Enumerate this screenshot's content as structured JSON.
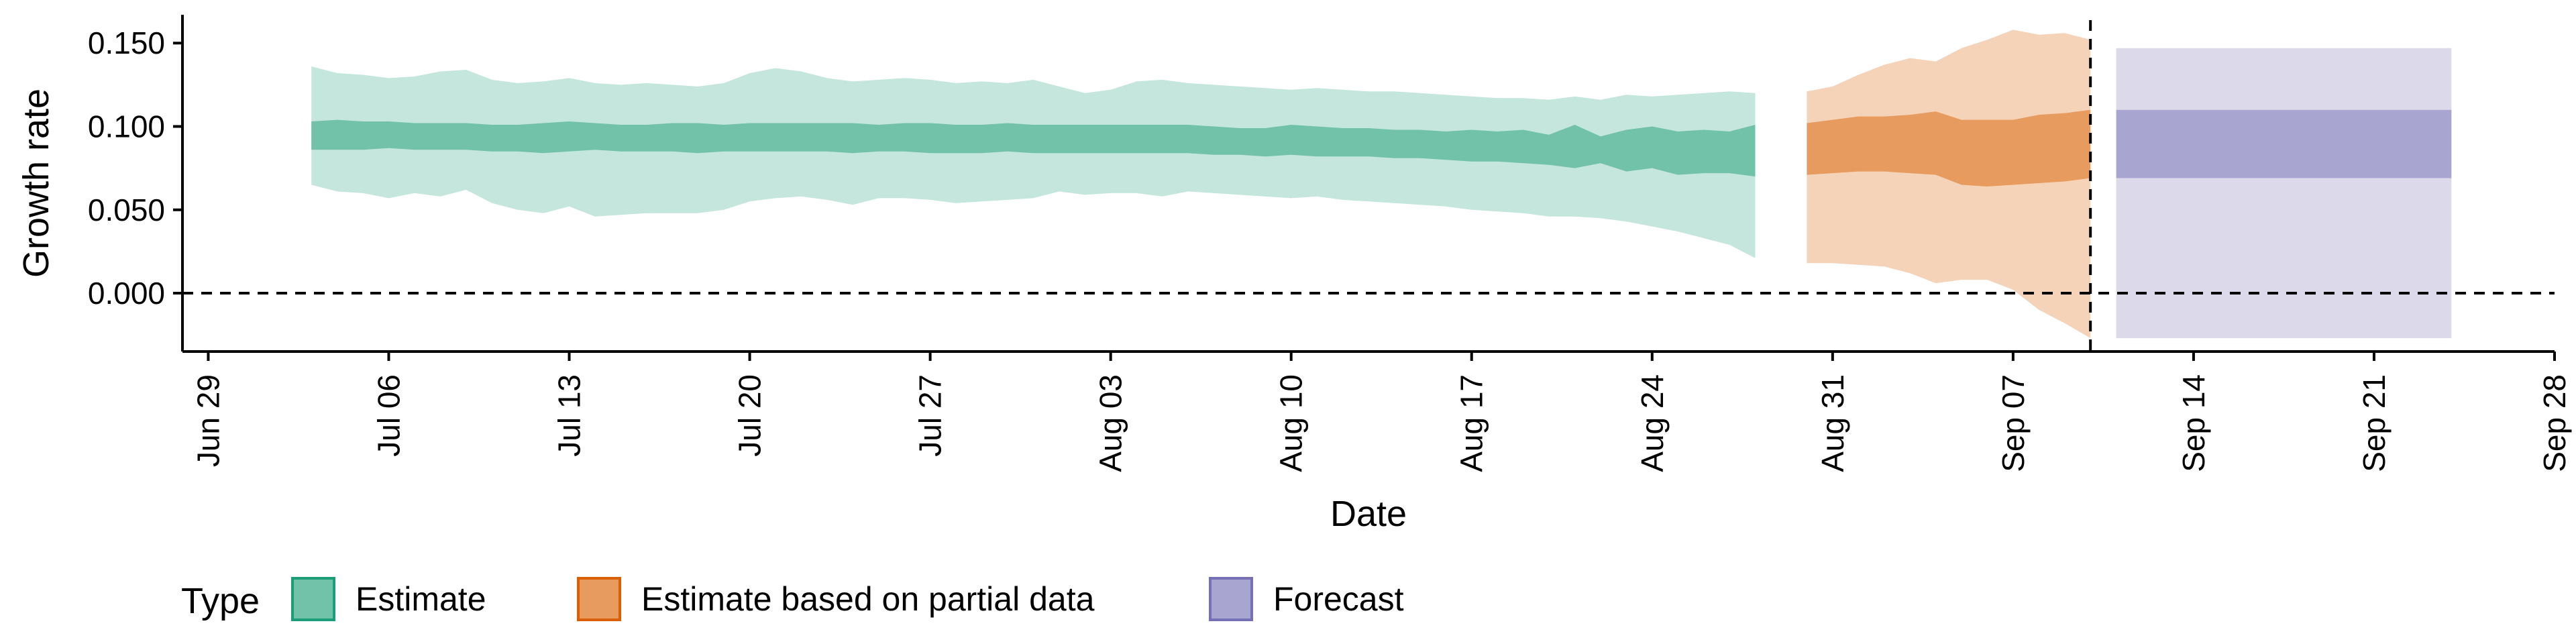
{
  "chart_data": {
    "type": "area",
    "xlabel": "Date",
    "ylabel": "Growth rate",
    "ylim": [
      -0.035,
      0.167
    ],
    "yticks": [
      0.0,
      0.05,
      0.1,
      0.15
    ],
    "ytick_labels": [
      "0.000",
      "0.050",
      "0.100",
      "0.150"
    ],
    "xlim": [
      "2020-06-28",
      "2020-09-28"
    ],
    "xtick_dates": [
      "2020-06-29",
      "2020-07-06",
      "2020-07-13",
      "2020-07-20",
      "2020-07-27",
      "2020-08-03",
      "2020-08-10",
      "2020-08-17",
      "2020-08-24",
      "2020-08-31",
      "2020-09-07",
      "2020-09-14",
      "2020-09-21",
      "2020-09-28"
    ],
    "xtick_labels": [
      "Jun 29",
      "Jul 06",
      "Jul 13",
      "Jul 20",
      "Jul 27",
      "Aug 03",
      "Aug 10",
      "Aug 17",
      "Aug 24",
      "Aug 31",
      "Sep 07",
      "Sep 14",
      "Sep 21",
      "Sep 28"
    ],
    "reference_lines": {
      "horizontal_y": 0.0,
      "vertical_date": "2020-09-10",
      "style": "dashed"
    },
    "legend": {
      "title": "Type",
      "placement": "bottom",
      "entries": [
        {
          "label": "Estimate",
          "color": "#1b9e77"
        },
        {
          "label": "Estimate based on partial data",
          "color": "#d95f02"
        },
        {
          "label": "Forecast",
          "color": "#7570b3"
        }
      ]
    },
    "series": [
      {
        "name": "Estimate",
        "fill_outer": "#c4e6dc",
        "fill_inner": "#72c2a9",
        "x": [
          "2020-07-03",
          "2020-07-04",
          "2020-07-05",
          "2020-07-06",
          "2020-07-07",
          "2020-07-08",
          "2020-07-09",
          "2020-07-10",
          "2020-07-11",
          "2020-07-12",
          "2020-07-13",
          "2020-07-14",
          "2020-07-15",
          "2020-07-16",
          "2020-07-17",
          "2020-07-18",
          "2020-07-19",
          "2020-07-20",
          "2020-07-21",
          "2020-07-22",
          "2020-07-23",
          "2020-07-24",
          "2020-07-25",
          "2020-07-26",
          "2020-07-27",
          "2020-07-28",
          "2020-07-29",
          "2020-07-30",
          "2020-07-31",
          "2020-08-01",
          "2020-08-02",
          "2020-08-03",
          "2020-08-04",
          "2020-08-05",
          "2020-08-06",
          "2020-08-07",
          "2020-08-08",
          "2020-08-09",
          "2020-08-10",
          "2020-08-11",
          "2020-08-12",
          "2020-08-13",
          "2020-08-14",
          "2020-08-15",
          "2020-08-16",
          "2020-08-17",
          "2020-08-18",
          "2020-08-19",
          "2020-08-20",
          "2020-08-21",
          "2020-08-22",
          "2020-08-23",
          "2020-08-24",
          "2020-08-25",
          "2020-08-26",
          "2020-08-27",
          "2020-08-28"
        ],
        "lower90": [
          0.065,
          0.061,
          0.06,
          0.057,
          0.06,
          0.058,
          0.062,
          0.054,
          0.05,
          0.048,
          0.052,
          0.046,
          0.047,
          0.048,
          0.048,
          0.048,
          0.05,
          0.055,
          0.057,
          0.058,
          0.056,
          0.053,
          0.057,
          0.057,
          0.056,
          0.054,
          0.055,
          0.056,
          0.057,
          0.061,
          0.059,
          0.06,
          0.06,
          0.058,
          0.061,
          0.06,
          0.059,
          0.058,
          0.057,
          0.058,
          0.056,
          0.055,
          0.054,
          0.053,
          0.052,
          0.05,
          0.049,
          0.048,
          0.046,
          0.046,
          0.045,
          0.043,
          0.04,
          0.037,
          0.033,
          0.029,
          0.021
        ],
        "lower50": [
          0.086,
          0.086,
          0.086,
          0.087,
          0.086,
          0.086,
          0.086,
          0.085,
          0.085,
          0.084,
          0.085,
          0.086,
          0.085,
          0.085,
          0.085,
          0.084,
          0.085,
          0.085,
          0.085,
          0.085,
          0.085,
          0.084,
          0.085,
          0.085,
          0.084,
          0.084,
          0.084,
          0.085,
          0.084,
          0.084,
          0.084,
          0.084,
          0.084,
          0.084,
          0.084,
          0.083,
          0.083,
          0.082,
          0.083,
          0.082,
          0.082,
          0.082,
          0.081,
          0.081,
          0.08,
          0.079,
          0.079,
          0.078,
          0.077,
          0.075,
          0.078,
          0.073,
          0.075,
          0.071,
          0.072,
          0.072,
          0.07
        ],
        "upper50": [
          0.103,
          0.104,
          0.103,
          0.103,
          0.102,
          0.102,
          0.102,
          0.101,
          0.101,
          0.102,
          0.103,
          0.102,
          0.101,
          0.101,
          0.102,
          0.102,
          0.101,
          0.102,
          0.102,
          0.102,
          0.102,
          0.102,
          0.101,
          0.102,
          0.102,
          0.101,
          0.101,
          0.102,
          0.101,
          0.101,
          0.101,
          0.101,
          0.101,
          0.101,
          0.101,
          0.1,
          0.099,
          0.099,
          0.101,
          0.1,
          0.099,
          0.099,
          0.098,
          0.098,
          0.097,
          0.098,
          0.097,
          0.098,
          0.095,
          0.101,
          0.094,
          0.098,
          0.1,
          0.097,
          0.098,
          0.097,
          0.101
        ],
        "upper90": [
          0.136,
          0.132,
          0.131,
          0.129,
          0.13,
          0.133,
          0.134,
          0.128,
          0.126,
          0.127,
          0.129,
          0.126,
          0.125,
          0.126,
          0.125,
          0.124,
          0.126,
          0.132,
          0.135,
          0.133,
          0.129,
          0.127,
          0.128,
          0.129,
          0.128,
          0.126,
          0.127,
          0.126,
          0.128,
          0.124,
          0.12,
          0.122,
          0.127,
          0.128,
          0.126,
          0.125,
          0.124,
          0.123,
          0.122,
          0.123,
          0.122,
          0.121,
          0.121,
          0.12,
          0.119,
          0.118,
          0.117,
          0.117,
          0.116,
          0.118,
          0.116,
          0.119,
          0.118,
          0.119,
          0.12,
          0.121,
          0.12
        ]
      },
      {
        "name": "Estimate based on partial data",
        "fill_outer": "#f5d3b8",
        "fill_inner": "#e89b5e",
        "x": [
          "2020-08-30",
          "2020-08-31",
          "2020-09-01",
          "2020-09-02",
          "2020-09-03",
          "2020-09-04",
          "2020-09-05",
          "2020-09-06",
          "2020-09-07",
          "2020-09-08",
          "2020-09-09",
          "2020-09-10"
        ],
        "lower90": [
          0.018,
          0.018,
          0.017,
          0.016,
          0.012,
          0.006,
          0.008,
          0.008,
          0.002,
          -0.01,
          -0.018,
          -0.027
        ],
        "lower50": [
          0.071,
          0.072,
          0.073,
          0.073,
          0.072,
          0.071,
          0.065,
          0.064,
          0.065,
          0.066,
          0.067,
          0.069
        ],
        "upper50": [
          0.102,
          0.104,
          0.106,
          0.106,
          0.107,
          0.109,
          0.104,
          0.104,
          0.104,
          0.107,
          0.108,
          0.11
        ],
        "upper90": [
          0.121,
          0.124,
          0.131,
          0.137,
          0.141,
          0.139,
          0.147,
          0.152,
          0.158,
          0.155,
          0.156,
          0.152
        ]
      },
      {
        "name": "Forecast",
        "fill_outer": "#dcdaea",
        "fill_inner": "#a9a5d1",
        "x": [
          "2020-09-11",
          "2020-09-24"
        ],
        "lower90": [
          -0.027,
          -0.027
        ],
        "lower50": [
          0.069,
          0.069
        ],
        "upper50": [
          0.11,
          0.11
        ],
        "upper90": [
          0.147,
          0.147
        ]
      }
    ]
  }
}
